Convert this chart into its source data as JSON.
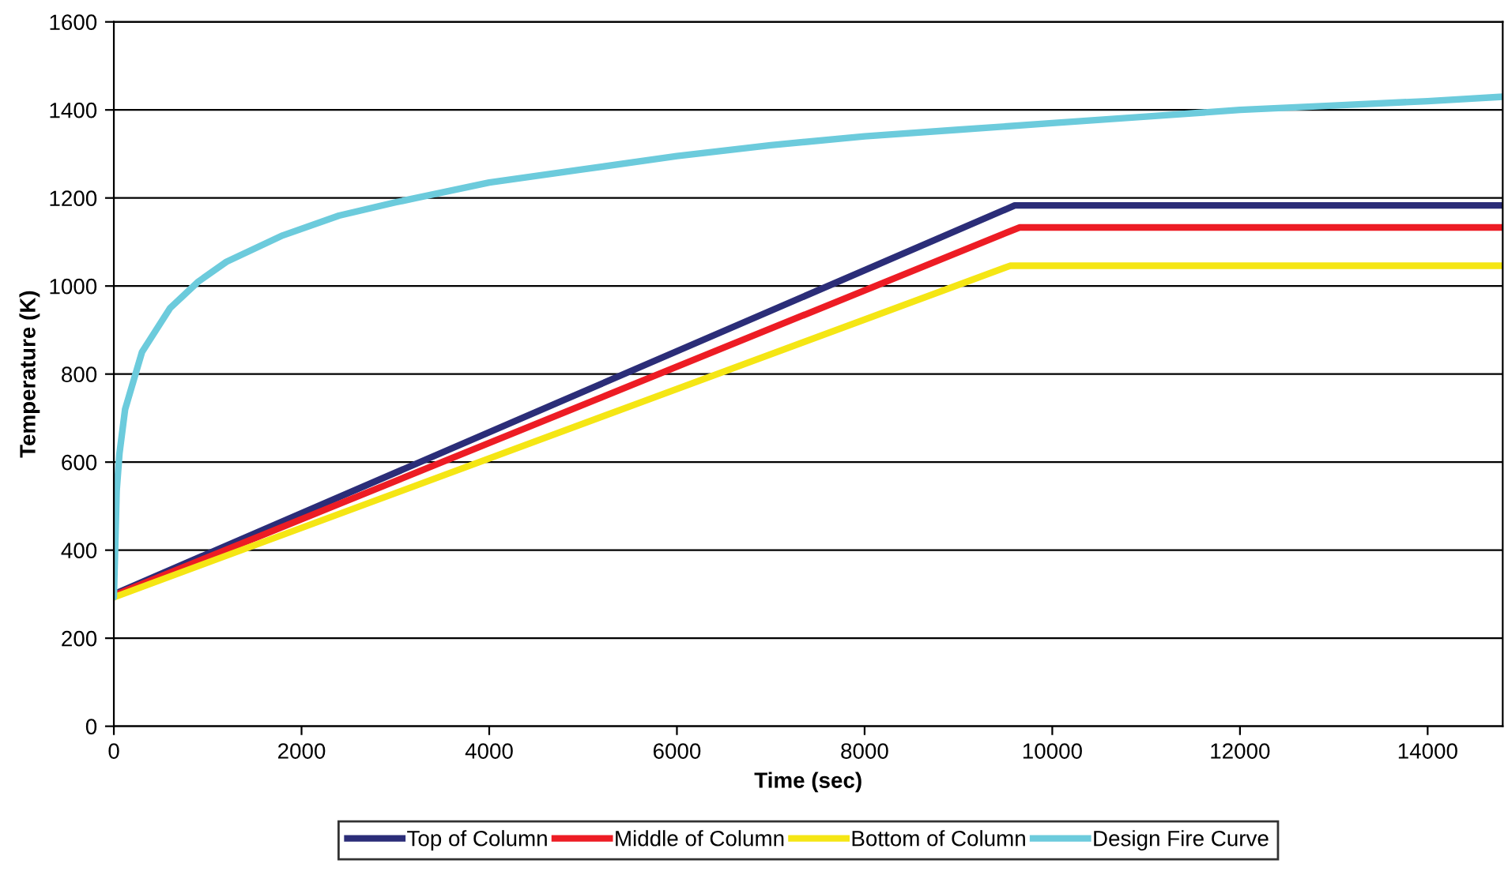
{
  "chart_data": {
    "type": "line",
    "xlabel": "Time (sec)",
    "ylabel": "Temperature (K)",
    "xlim": [
      0,
      14800
    ],
    "xticks": [
      0,
      2000,
      4000,
      6000,
      8000,
      10000,
      12000,
      14000
    ],
    "ylim": [
      0,
      1600
    ],
    "yticks": [
      0,
      200,
      400,
      600,
      800,
      1000,
      1200,
      1400,
      1600
    ],
    "grid": "y",
    "legend": "bottom",
    "marker": "none",
    "line_style": "solid",
    "series": [
      {
        "name": "Top of Column",
        "color": "#2b2d78",
        "x": [
          0,
          9600,
          14800
        ],
        "values": [
          300,
          1183,
          1183
        ]
      },
      {
        "name": "Middle of Column",
        "color": "#ed1c24",
        "x": [
          0,
          9650,
          14800
        ],
        "values": [
          297,
          1133,
          1133
        ]
      },
      {
        "name": "Bottom of Column",
        "color": "#f5e614",
        "x": [
          0,
          9550,
          14800
        ],
        "values": [
          293,
          1046,
          1046
        ]
      },
      {
        "name": "Design Fire Curve",
        "color": "#6ccbdc",
        "x": [
          0,
          30,
          60,
          120,
          300,
          600,
          900,
          1200,
          1800,
          2400,
          3000,
          4000,
          5000,
          6000,
          7000,
          8000,
          9000,
          10000,
          11000,
          12000,
          13000,
          14000,
          14800
        ],
        "values": [
          293,
          535,
          620,
          720,
          850,
          950,
          1010,
          1055,
          1115,
          1160,
          1190,
          1235,
          1265,
          1295,
          1320,
          1340,
          1355,
          1370,
          1385,
          1400,
          1410,
          1420,
          1430
        ]
      }
    ]
  }
}
